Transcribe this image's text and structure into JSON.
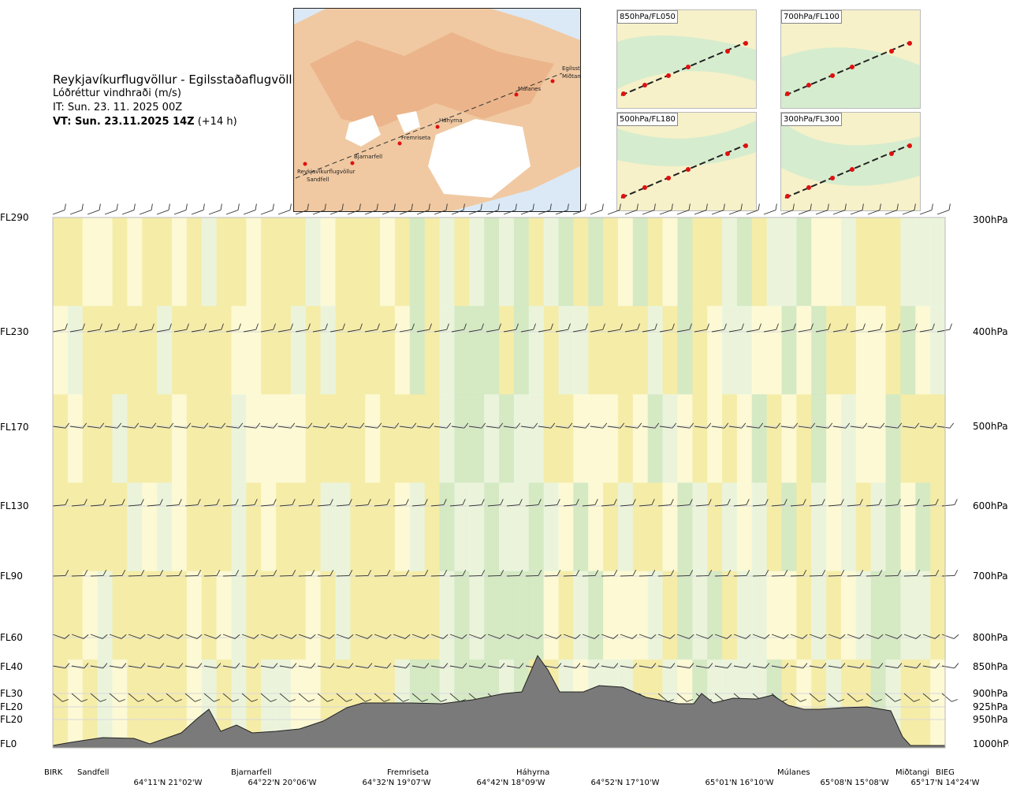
{
  "header": {
    "route": "Reykjavíkurflugvöllur - Egilsstaðaflugvöllur",
    "parameter": "Lóðréttur vindhraði (m/s)",
    "init_time": "IT: Sun. 23. 11. 2025 00Z",
    "valid_time_bold": "VT: Sun. 23.11.2025 14Z",
    "valid_time_lead": "(+14 h)"
  },
  "map_inset": {
    "places": [
      "Reykjavíkurflugvöllur",
      "Sandfell",
      "Bjarnarfell",
      "Fremriseta",
      "Háhyrna",
      "Múlanes",
      "Egilsst",
      "Miðtangi"
    ]
  },
  "small_maps": [
    {
      "label": "850hPa/FL050"
    },
    {
      "label": "700hPa/FL100"
    },
    {
      "label": "500hPa/FL180"
    },
    {
      "label": "300hPa/FL300"
    }
  ],
  "levels": [
    {
      "fl": "FL290",
      "hpa": "300hPa"
    },
    {
      "fl": "FL230",
      "hpa": "400hPa"
    },
    {
      "fl": "FL170",
      "hpa": "500hPa"
    },
    {
      "fl": "FL130",
      "hpa": "600hPa"
    },
    {
      "fl": "FL90",
      "hpa": "700hPa"
    },
    {
      "fl": "FL60",
      "hpa": "800hPa"
    },
    {
      "fl": "FL40",
      "hpa": "850hPa"
    },
    {
      "fl": "FL30",
      "hpa": "900hPa"
    },
    {
      "fl": "FL20",
      "hpa": "925hPa"
    },
    {
      "fl": "FL20",
      "hpa": "950hPa"
    },
    {
      "fl": "FL0",
      "hpa": "1000hPa"
    }
  ],
  "locations": [
    "BIRK",
    "Sandfell",
    "Bjarnarfell",
    "Fremriseta",
    "Háhyrna",
    "Múlanes",
    "Miðtangi",
    "BIEG"
  ],
  "coordinates": [
    "64°11'N 21°02'W",
    "64°22'N 20°06'W",
    "64°32'N 19°07'W",
    "64°42'N 18°09'W",
    "64°52'N 17°10'W",
    "65°01'N 16°10'W",
    "65°08'N 15°08'W",
    "65°17'N 14°24'W"
  ],
  "colors": {
    "up_weak": "#fdfbdc",
    "up": "#f4eca8",
    "up_strong": "#e9df6e",
    "down_weak": "#e9f6e4",
    "down": "#cfe9c8",
    "down_strong": "#a9d8a0",
    "terrain": "#7a7a7a",
    "route": "#e01010"
  },
  "chart_data": {
    "type": "heatmap",
    "title": "Reykjavíkurflugvöllur - Egilsstaðaflugvöllur",
    "ylabel": "",
    "xlabel": "",
    "x_locations": [
      "BIRK",
      "Sandfell",
      "Bjarnarfell",
      "Fremriseta",
      "Háhyrna",
      "Múlanes",
      "Miðtangi",
      "BIEG"
    ],
    "y_levels_hpa": [
      300,
      400,
      500,
      600,
      700,
      800,
      850,
      900,
      925,
      950,
      1000
    ],
    "y_levels_fl": [
      "FL290",
      "FL230",
      "FL170",
      "FL130",
      "FL90",
      "FL60",
      "FL40",
      "FL30",
      "FL20",
      "FL20",
      "FL0"
    ],
    "value_bands_ms": [
      -0.5,
      -0.2,
      -0.05,
      0.05,
      0.2,
      0.5
    ],
    "grid": true,
    "legend": "none"
  }
}
